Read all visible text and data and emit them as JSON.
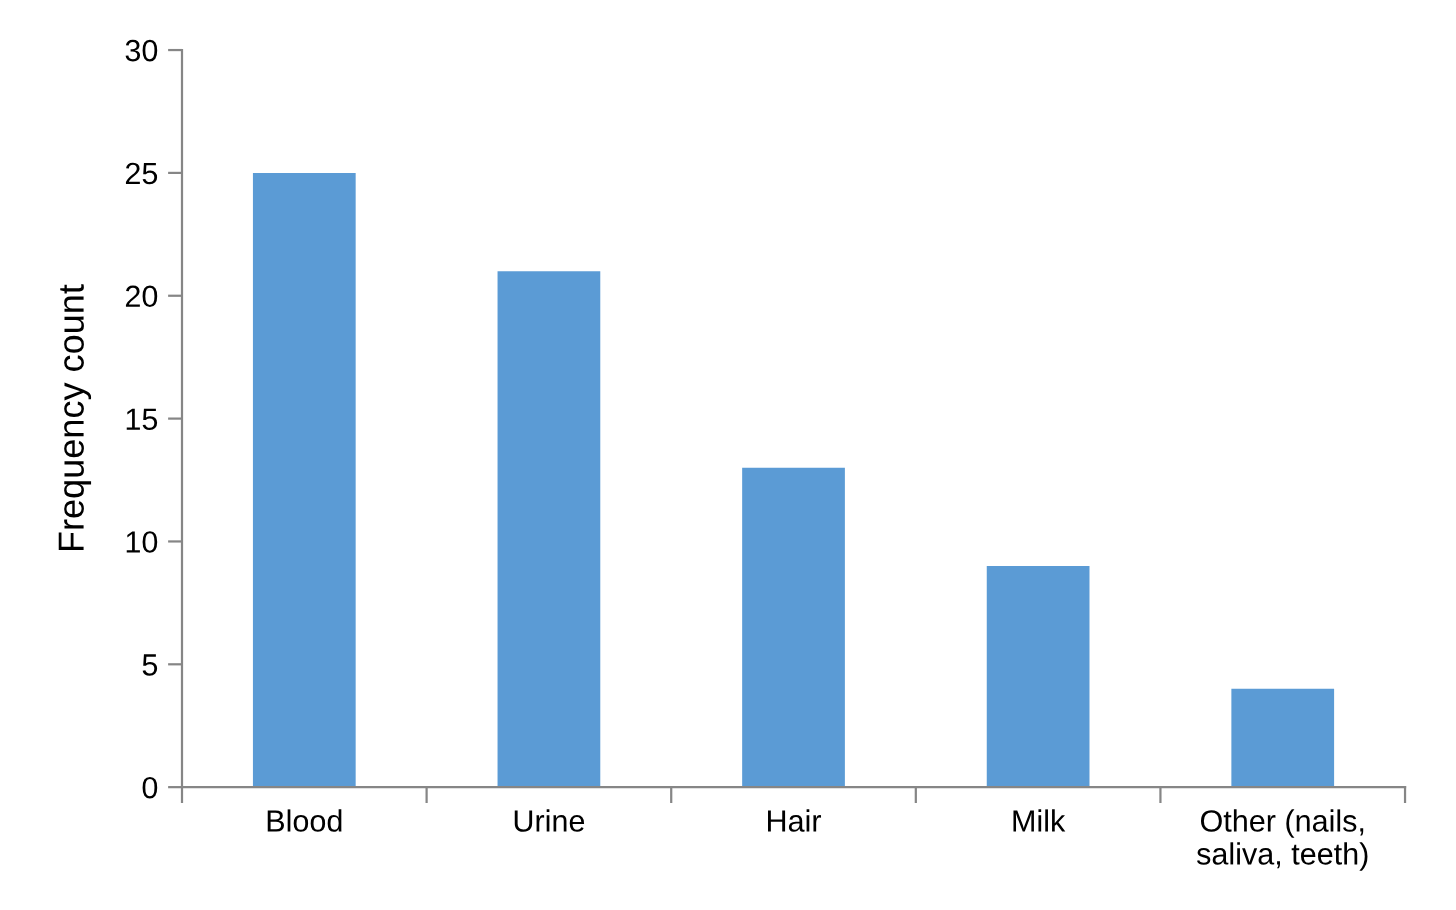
{
  "chart_data": {
    "type": "bar",
    "ylabel": "Frequency count",
    "categories": [
      "Blood",
      "Urine",
      "Hair",
      "Milk",
      "Other (nails,\nsaliva, teeth)"
    ],
    "values": [
      25,
      21,
      13,
      9,
      4
    ],
    "color": "#5b9bd5",
    "ylim": [
      0,
      30
    ],
    "yticks": [
      0,
      5,
      10,
      15,
      20,
      25,
      30
    ],
    "grid": false,
    "legend": false
  }
}
